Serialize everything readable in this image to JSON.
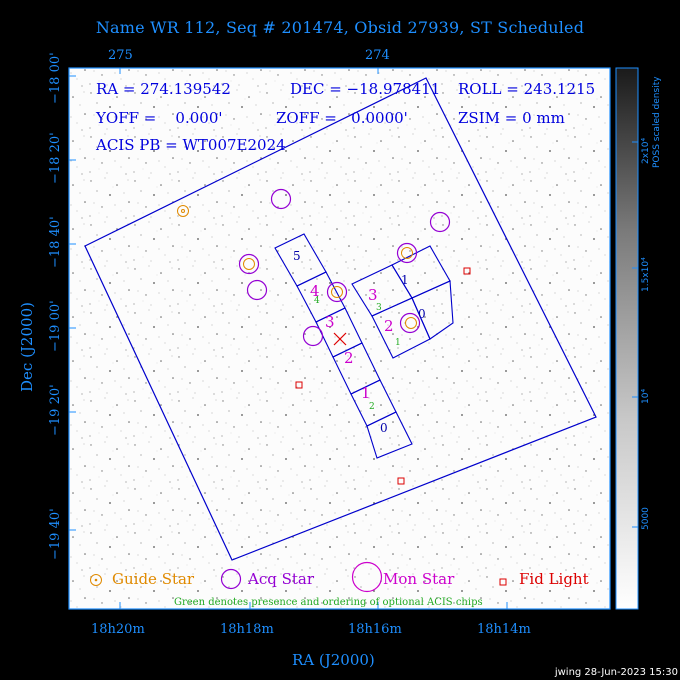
{
  "title": "Name WR 112, Seq # 201474, Obsid 27939, ST Scheduled",
  "top_axis_ticks": [
    "275",
    "274"
  ],
  "bottom_axis_ticks": [
    "18h20m",
    "18h18m",
    "18h16m",
    "18h14m"
  ],
  "left_axis_ticks": [
    "−18 00'",
    "−18 20'",
    "−18 40'",
    "−19 00'",
    "−19 20'",
    "−19 40'"
  ],
  "x_axis_title": "RA (J2000)",
  "y_axis_title": "Dec (J2000)",
  "info": {
    "ra": "RA = 274.139542",
    "dec": "DEC = −18.978411",
    "roll": "ROLL = 243.1215",
    "yoff": "YOFF =    0.000'",
    "zoff": "ZOFF =   0.0000'",
    "zsim": "ZSIM = 0 mm",
    "acis_pb": "ACIS PB = WT007E2024"
  },
  "chip_labels": [
    "5",
    "4",
    "3",
    "2",
    "1",
    "0",
    "3",
    "1",
    "2",
    "0"
  ],
  "optional_chip_numbers": [
    "3",
    "4",
    "1",
    "2"
  ],
  "legend": {
    "guide": "Guide Star",
    "acq": "Acq Star",
    "mon": "Mon Star",
    "fid": "Fid Light",
    "note": "Green denotes presence and ordering of optional ACIS chips"
  },
  "colorbar": {
    "title": "POSS scaled density",
    "ticks": [
      "5000",
      "10⁴",
      "1.5x10⁴",
      "2x10⁴"
    ]
  },
  "footer": "jwing 28-Jun-2023 15:30",
  "colors": {
    "axis_text": "#1e8fff",
    "info_text": "#0000dd",
    "guide_star": "#e08a00",
    "acq_star": "#9400d3",
    "mon_star": "#cc00cc",
    "fid_light": "#dd0000",
    "optional_chip": "#22aa22",
    "chip_outline": "#0000cc"
  }
}
